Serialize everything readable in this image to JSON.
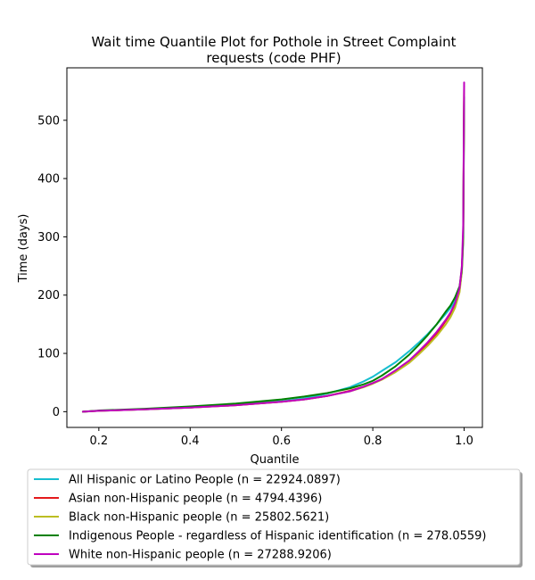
{
  "chart_data": {
    "type": "line",
    "title_line1": "Wait time Quantile Plot for Pothole in Street Complaint",
    "title_line2": "requests (code PHF)",
    "xlabel": "Quantile",
    "ylabel": "Time (days)",
    "xlim": [
      0.13,
      1.04
    ],
    "ylim": [
      -27,
      590
    ],
    "xticks": [
      0.2,
      0.4,
      0.6,
      0.8,
      1.0
    ],
    "xtick_labels": [
      "0.2",
      "0.4",
      "0.6",
      "0.8",
      "1.0"
    ],
    "yticks": [
      0,
      100,
      200,
      300,
      400,
      500
    ],
    "ytick_labels": [
      "0",
      "100",
      "200",
      "300",
      "400",
      "500"
    ],
    "grid": false,
    "legend_position": "below plot",
    "series": [
      {
        "name": "All Hispanic or Latino People (n = 22924.0897)",
        "color": "#17becf",
        "x": [
          0.165,
          0.2,
          0.3,
          0.4,
          0.5,
          0.6,
          0.65,
          0.7,
          0.75,
          0.78,
          0.8,
          0.82,
          0.85,
          0.88,
          0.9,
          0.92,
          0.94,
          0.96,
          0.97,
          0.98,
          0.99,
          0.995,
          0.998,
          1.0
        ],
        "y": [
          0,
          1.5,
          4,
          7,
          12,
          18,
          23,
          31,
          42,
          52,
          60,
          70,
          85,
          104,
          118,
          133,
          150,
          168,
          178,
          190,
          210,
          240,
          290,
          540
        ]
      },
      {
        "name": "Asian non-Hispanic people (n = 4794.4396)",
        "color": "#e41a1c",
        "x": [
          0.165,
          0.2,
          0.3,
          0.4,
          0.5,
          0.6,
          0.65,
          0.7,
          0.75,
          0.78,
          0.8,
          0.82,
          0.85,
          0.88,
          0.9,
          0.92,
          0.94,
          0.96,
          0.97,
          0.98,
          0.99,
          0.995,
          0.998,
          1.0
        ],
        "y": [
          0,
          1.5,
          4,
          7,
          11,
          17,
          21,
          27,
          36,
          43,
          49,
          56,
          70,
          86,
          100,
          115,
          133,
          156,
          168,
          185,
          210,
          245,
          300,
          560
        ]
      },
      {
        "name": "Black non-Hispanic people (n = 25802.5621)",
        "color": "#bcbd22",
        "x": [
          0.165,
          0.2,
          0.3,
          0.4,
          0.5,
          0.6,
          0.65,
          0.7,
          0.75,
          0.78,
          0.8,
          0.82,
          0.85,
          0.88,
          0.9,
          0.92,
          0.94,
          0.96,
          0.97,
          0.98,
          0.99,
          0.995,
          0.998,
          1.0
        ],
        "y": [
          0,
          1.5,
          4,
          7,
          11,
          17,
          21,
          27,
          35,
          42,
          48,
          55,
          68,
          84,
          98,
          113,
          130,
          150,
          162,
          178,
          205,
          240,
          295,
          560
        ]
      },
      {
        "name": "Indigenous People - regardless of Hispanic identification (n = 278.0559)",
        "color": "#008000",
        "x": [
          0.165,
          0.2,
          0.3,
          0.4,
          0.5,
          0.6,
          0.65,
          0.7,
          0.75,
          0.78,
          0.8,
          0.82,
          0.85,
          0.88,
          0.9,
          0.92,
          0.94,
          0.96,
          0.97,
          0.98,
          0.99,
          0.995,
          0.998,
          1.0
        ],
        "y": [
          0,
          2,
          5,
          9,
          14,
          21,
          26,
          32,
          40,
          47,
          53,
          62,
          78,
          98,
          114,
          131,
          150,
          172,
          182,
          196,
          215,
          245,
          300,
          540
        ]
      },
      {
        "name": "White non-Hispanic people (n = 27288.9206)",
        "color": "#bf00bf",
        "x": [
          0.165,
          0.2,
          0.3,
          0.4,
          0.5,
          0.6,
          0.65,
          0.7,
          0.75,
          0.78,
          0.8,
          0.82,
          0.85,
          0.88,
          0.9,
          0.92,
          0.94,
          0.96,
          0.97,
          0.98,
          0.99,
          0.995,
          0.998,
          1.0
        ],
        "y": [
          0,
          1.5,
          4,
          7,
          11,
          17,
          21,
          27,
          35,
          43,
          49,
          56,
          71,
          88,
          103,
          119,
          137,
          158,
          170,
          186,
          212,
          250,
          320,
          565
        ]
      }
    ]
  }
}
